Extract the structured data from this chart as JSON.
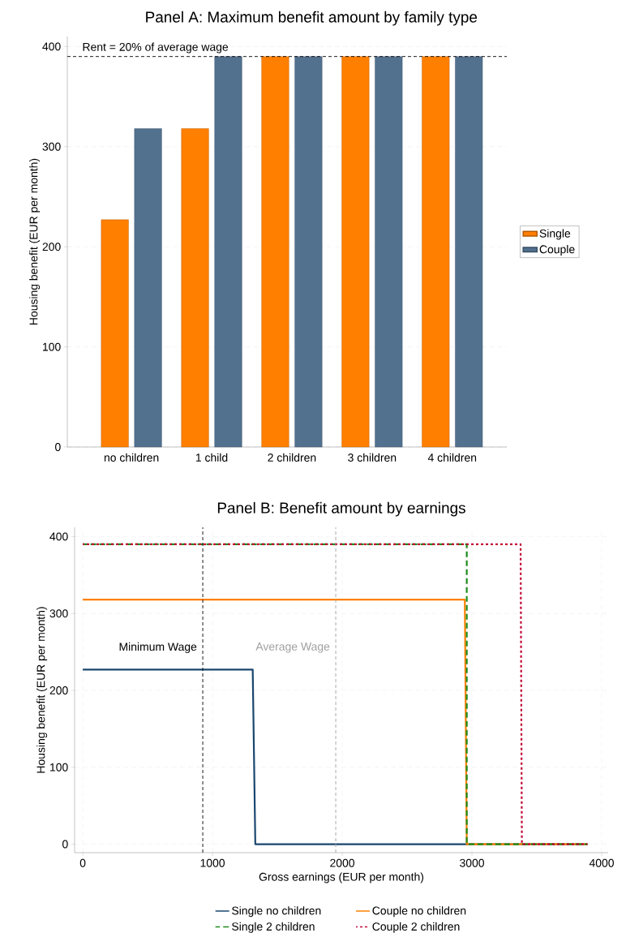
{
  "chart_data": [
    {
      "type": "bar",
      "title": "Panel A: Maximum benefit amount by family type",
      "ylabel": "Housing benefit (EUR per month)",
      "categories": [
        "no children",
        "1 child",
        "2 children",
        "3 children",
        "4 children"
      ],
      "series": [
        {
          "name": "Single",
          "color": "#ff7f00",
          "values": [
            227,
            318,
            390,
            390,
            390
          ]
        },
        {
          "name": "Couple",
          "color": "#52718f",
          "values": [
            318,
            390,
            390,
            390,
            390
          ]
        }
      ],
      "ylim": [
        0,
        410
      ],
      "yticks": [
        0,
        100,
        200,
        300,
        400
      ],
      "grid": "y",
      "legend": "right",
      "annotations": [
        "Rent = 20% of average wage"
      ],
      "ref_lines": [
        {
          "axis": "y",
          "value": 390,
          "color": "#000000",
          "line_style": "dashed"
        }
      ]
    },
    {
      "type": "line",
      "title": "Panel B: Benefit amount by earnings",
      "xlabel": "Gross earnings (EUR per month)",
      "ylabel": "Housing benefit (EUR per month)",
      "series": [
        {
          "name": "Single no children",
          "color": "#1a476f",
          "line_style": "solid",
          "x": [
            0,
            1310,
            1330,
            3890
          ],
          "values": [
            227,
            227,
            0,
            0
          ]
        },
        {
          "name": "Couple no children",
          "color": "#ff8000",
          "line_style": "solid",
          "x": [
            0,
            2945,
            2960,
            3890
          ],
          "values": [
            318,
            318,
            0,
            0
          ]
        },
        {
          "name": "Single 2 children",
          "color": "#1e8c1e",
          "line_style": "dashed",
          "x": [
            0,
            2960,
            2960,
            3890
          ],
          "values": [
            390,
            390,
            0,
            0
          ]
        },
        {
          "name": "Couple 2 children",
          "color": "#c10534",
          "line_style": "dotted",
          "x": [
            0,
            3375,
            3385,
            3890
          ],
          "values": [
            390,
            390,
            0,
            0
          ]
        }
      ],
      "xlim": [
        -63,
        4050
      ],
      "ylim": [
        -11,
        412
      ],
      "xticks": [
        0,
        1000,
        2000,
        3000,
        4000
      ],
      "yticks": [
        0,
        100,
        200,
        300,
        400
      ],
      "grid": true,
      "legend": "bottom",
      "ref_lines": [
        {
          "axis": "x",
          "value": 925,
          "label": "Minimum Wage",
          "color": "#000000",
          "line_style": "dashed"
        },
        {
          "axis": "x",
          "value": 1950,
          "label": "Average Wage",
          "color": "#a0a0a0",
          "line_style": "dashed"
        }
      ]
    }
  ]
}
